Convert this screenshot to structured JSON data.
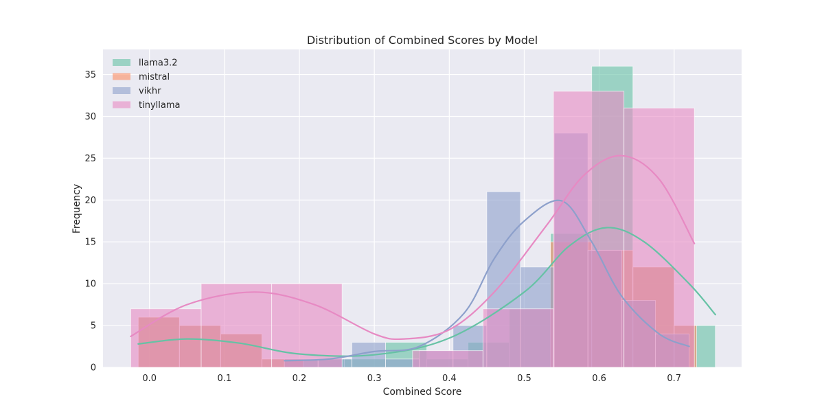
{
  "chart_data": {
    "type": "bar",
    "subtype": "overlaid histogram with kde lines",
    "title": "Distribution of Combined Scores by Model",
    "xlabel": "Combined Score",
    "ylabel": "Frequency",
    "xlim": [
      -0.062,
      0.79
    ],
    "ylim": [
      0,
      38
    ],
    "xticks": [
      "0.0",
      "0.1",
      "0.2",
      "0.3",
      "0.4",
      "0.5",
      "0.6",
      "0.7"
    ],
    "yticks": [
      "0",
      "5",
      "10",
      "15",
      "20",
      "25",
      "30",
      "35"
    ],
    "grid": true,
    "legend_placement": "top-left",
    "series": [
      {
        "name": "llama3.2",
        "color": "#66c2a5",
        "bins": [
          {
            "x0": -0.015,
            "x1": 0.04,
            "count": 6
          },
          {
            "x0": 0.04,
            "x1": 0.095,
            "count": 5
          },
          {
            "x0": 0.095,
            "x1": 0.15,
            "count": 4
          },
          {
            "x0": 0.15,
            "x1": 0.205,
            "count": 1
          },
          {
            "x0": 0.205,
            "x1": 0.26,
            "count": 1
          },
          {
            "x0": 0.26,
            "x1": 0.315,
            "count": 1
          },
          {
            "x0": 0.315,
            "x1": 0.37,
            "count": 3
          },
          {
            "x0": 0.37,
            "x1": 0.425,
            "count": 1
          },
          {
            "x0": 0.425,
            "x1": 0.48,
            "count": 3
          },
          {
            "x0": 0.48,
            "x1": 0.535,
            "count": 7
          },
          {
            "x0": 0.535,
            "x1": 0.59,
            "count": 16
          },
          {
            "x0": 0.59,
            "x1": 0.645,
            "count": 36
          },
          {
            "x0": 0.645,
            "x1": 0.7,
            "count": 12
          },
          {
            "x0": 0.7,
            "x1": 0.755,
            "count": 5
          }
        ],
        "kde": [
          [
            -0.015,
            2.8
          ],
          [
            0.05,
            3.4
          ],
          [
            0.12,
            2.9
          ],
          [
            0.2,
            1.6
          ],
          [
            0.3,
            1.5
          ],
          [
            0.4,
            3.5
          ],
          [
            0.5,
            9.0
          ],
          [
            0.56,
            14.5
          ],
          [
            0.61,
            16.7
          ],
          [
            0.66,
            15.0
          ],
          [
            0.72,
            10.0
          ],
          [
            0.755,
            6.3
          ]
        ]
      },
      {
        "name": "mistral",
        "color": "#fc8d62",
        "bins": [
          {
            "x0": -0.015,
            "x1": 0.04,
            "count": 6
          },
          {
            "x0": 0.04,
            "x1": 0.095,
            "count": 5
          },
          {
            "x0": 0.095,
            "x1": 0.15,
            "count": 4
          },
          {
            "x0": 0.15,
            "x1": 0.205,
            "count": 1
          },
          {
            "x0": 0.535,
            "x1": 0.59,
            "count": 15
          },
          {
            "x0": 0.59,
            "x1": 0.645,
            "count": 14
          },
          {
            "x0": 0.645,
            "x1": 0.7,
            "count": 12
          },
          {
            "x0": 0.7,
            "x1": 0.73,
            "count": 5
          }
        ],
        "kde": []
      },
      {
        "name": "vikhr",
        "color": "#8da0cb",
        "bins": [
          {
            "x0": 0.18,
            "x1": 0.225,
            "count": 1
          },
          {
            "x0": 0.225,
            "x1": 0.27,
            "count": 1
          },
          {
            "x0": 0.27,
            "x1": 0.315,
            "count": 3
          },
          {
            "x0": 0.315,
            "x1": 0.36,
            "count": 1
          },
          {
            "x0": 0.36,
            "x1": 0.405,
            "count": 2
          },
          {
            "x0": 0.405,
            "x1": 0.45,
            "count": 5
          },
          {
            "x0": 0.45,
            "x1": 0.495,
            "count": 21
          },
          {
            "x0": 0.495,
            "x1": 0.54,
            "count": 12
          },
          {
            "x0": 0.54,
            "x1": 0.585,
            "count": 28
          },
          {
            "x0": 0.585,
            "x1": 0.63,
            "count": 14
          },
          {
            "x0": 0.63,
            "x1": 0.675,
            "count": 8
          },
          {
            "x0": 0.675,
            "x1": 0.72,
            "count": 4
          }
        ],
        "kde": [
          [
            0.18,
            0.8
          ],
          [
            0.24,
            1.0
          ],
          [
            0.3,
            1.9
          ],
          [
            0.36,
            2.5
          ],
          [
            0.42,
            6.5
          ],
          [
            0.46,
            13.0
          ],
          [
            0.5,
            17.5
          ],
          [
            0.55,
            19.9
          ],
          [
            0.59,
            15.0
          ],
          [
            0.63,
            8.5
          ],
          [
            0.68,
            4.0
          ],
          [
            0.72,
            2.5
          ]
        ]
      },
      {
        "name": "tinyllama",
        "color": "#e78ac3",
        "bins": [
          {
            "x0": -0.025,
            "x1": 0.069,
            "count": 7
          },
          {
            "x0": 0.069,
            "x1": 0.163,
            "count": 10
          },
          {
            "x0": 0.163,
            "x1": 0.257,
            "count": 10
          },
          {
            "x0": 0.351,
            "x1": 0.445,
            "count": 2
          },
          {
            "x0": 0.445,
            "x1": 0.539,
            "count": 7
          },
          {
            "x0": 0.539,
            "x1": 0.633,
            "count": 33
          },
          {
            "x0": 0.633,
            "x1": 0.727,
            "count": 31
          }
        ],
        "kde": [
          [
            -0.025,
            3.7
          ],
          [
            0.05,
            7.5
          ],
          [
            0.14,
            9.0
          ],
          [
            0.22,
            7.5
          ],
          [
            0.3,
            4.0
          ],
          [
            0.34,
            3.4
          ],
          [
            0.4,
            4.5
          ],
          [
            0.46,
            9.0
          ],
          [
            0.53,
            17.0
          ],
          [
            0.58,
            23.0
          ],
          [
            0.63,
            25.3
          ],
          [
            0.68,
            22.5
          ],
          [
            0.727,
            14.8
          ]
        ]
      }
    ]
  }
}
